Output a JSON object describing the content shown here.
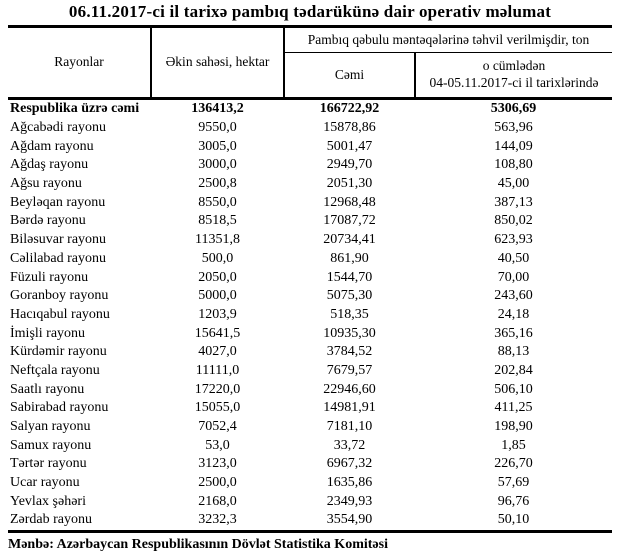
{
  "title": "06.11.2017-ci il tarixə pambıq tədarükünə dair operativ məlumat",
  "table": {
    "headers": {
      "regions": "Rayonlar",
      "area": "Əkin sahəsi, hektar",
      "delivery_group": "Pambıq qəbulu məntəqələrinə təhvil verilmişdir, ton",
      "total": "Cəmi",
      "including_line1": "o cümlədən",
      "including_line2": "04-05.11.2017-ci il tarixlərində"
    },
    "total_row": {
      "name": "Respublika üzrə cəmi",
      "area": "136413,2",
      "delivered_total": "166722,92",
      "delivered_recent": "5306,69"
    },
    "rows": [
      {
        "name": "Ağcabədi rayonu",
        "area": "9550,0",
        "delivered_total": "15878,86",
        "delivered_recent": "563,96"
      },
      {
        "name": "Ağdam rayonu",
        "area": "3005,0",
        "delivered_total": "5001,47",
        "delivered_recent": "144,09"
      },
      {
        "name": "Ağdaş rayonu",
        "area": "3000,0",
        "delivered_total": "2949,70",
        "delivered_recent": "108,80"
      },
      {
        "name": "Ağsu rayonu",
        "area": "2500,8",
        "delivered_total": "2051,30",
        "delivered_recent": "45,00"
      },
      {
        "name": "Beyləqan rayonu",
        "area": "8550,0",
        "delivered_total": "12968,48",
        "delivered_recent": "387,13"
      },
      {
        "name": "Bərdə rayonu",
        "area": "8518,5",
        "delivered_total": "17087,72",
        "delivered_recent": "850,02"
      },
      {
        "name": "Biləsuvar rayonu",
        "area": "11351,8",
        "delivered_total": "20734,41",
        "delivered_recent": "623,93"
      },
      {
        "name": "Cəlilabad rayonu",
        "area": "500,0",
        "delivered_total": "861,90",
        "delivered_recent": "40,50"
      },
      {
        "name": "Füzuli rayonu",
        "area": "2050,0",
        "delivered_total": "1544,70",
        "delivered_recent": "70,00"
      },
      {
        "name": "Goranboy rayonu",
        "area": "5000,0",
        "delivered_total": "5075,30",
        "delivered_recent": "243,60"
      },
      {
        "name": "Hacıqabul rayonu",
        "area": "1203,9",
        "delivered_total": "518,35",
        "delivered_recent": "24,18"
      },
      {
        "name": "İmişli rayonu",
        "area": "15641,5",
        "delivered_total": "10935,30",
        "delivered_recent": "365,16"
      },
      {
        "name": "Kürdəmir rayonu",
        "area": "4027,0",
        "delivered_total": "3784,52",
        "delivered_recent": "88,13"
      },
      {
        "name": "Neftçala rayonu",
        "area": "11111,0",
        "delivered_total": "7679,57",
        "delivered_recent": "202,84"
      },
      {
        "name": "Saatlı rayonu",
        "area": "17220,0",
        "delivered_total": "22946,60",
        "delivered_recent": "506,10"
      },
      {
        "name": "Sabirabad rayonu",
        "area": "15055,0",
        "delivered_total": "14981,91",
        "delivered_recent": "411,25"
      },
      {
        "name": "Salyan rayonu",
        "area": "7052,4",
        "delivered_total": "7181,10",
        "delivered_recent": "198,90"
      },
      {
        "name": "Samux rayonu",
        "area": "53,0",
        "delivered_total": "33,72",
        "delivered_recent": "1,85"
      },
      {
        "name": "Tərtər rayonu",
        "area": "3123,0",
        "delivered_total": "6967,32",
        "delivered_recent": "226,70"
      },
      {
        "name": "Ucar rayonu",
        "area": "2500,0",
        "delivered_total": "1635,86",
        "delivered_recent": "57,69"
      },
      {
        "name": "Yevlax şəhəri",
        "area": "2168,0",
        "delivered_total": "2349,93",
        "delivered_recent": "96,76"
      },
      {
        "name": "Zərdab rayonu",
        "area": "3232,3",
        "delivered_total": "3554,90",
        "delivered_recent": "50,10"
      }
    ]
  },
  "source_note": "Mənbə: Azərbaycan Respublikasının Dövlət Statistika Komitəsi"
}
